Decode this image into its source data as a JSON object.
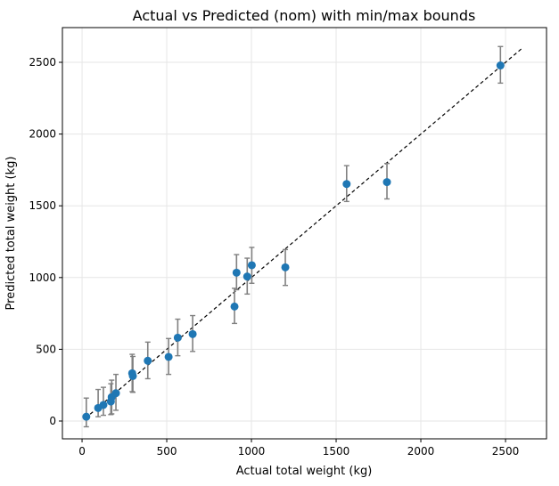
{
  "chart_data": {
    "type": "scatter",
    "title": "Actual vs Predicted (nom) with min/max bounds",
    "xlabel": "Actual total weight (kg)",
    "ylabel": "Predicted total weight (kg)",
    "xlim": [
      -116,
      2742
    ],
    "ylim": [
      -124,
      2742
    ],
    "xticks": [
      0,
      500,
      1000,
      1500,
      2000,
      2500
    ],
    "yticks": [
      0,
      500,
      1000,
      1500,
      2000,
      2500
    ],
    "grid": true,
    "point_color": "#1f77b4",
    "errorbar_color": "#808080",
    "reference_line": {
      "style": "dashed",
      "color": "#000000",
      "x": [
        20,
        2600
      ],
      "y": [
        20,
        2600
      ]
    },
    "points": [
      {
        "x": 25,
        "y": 30,
        "ymin": -40,
        "ymax": 160
      },
      {
        "x": 95,
        "y": 91,
        "ymin": 30,
        "ymax": 220
      },
      {
        "x": 126,
        "y": 112,
        "ymin": 40,
        "ymax": 235
      },
      {
        "x": 170,
        "y": 136,
        "ymin": 45,
        "ymax": 260
      },
      {
        "x": 175,
        "y": 167,
        "ymin": 50,
        "ymax": 285
      },
      {
        "x": 200,
        "y": 194,
        "ymin": 75,
        "ymax": 325
      },
      {
        "x": 296,
        "y": 333,
        "ymin": 205,
        "ymax": 465
      },
      {
        "x": 300,
        "y": 314,
        "ymin": 200,
        "ymax": 450
      },
      {
        "x": 388,
        "y": 420,
        "ymin": 295,
        "ymax": 550
      },
      {
        "x": 511,
        "y": 447,
        "ymin": 325,
        "ymax": 575
      },
      {
        "x": 565,
        "y": 581,
        "ymin": 455,
        "ymax": 710
      },
      {
        "x": 653,
        "y": 606,
        "ymin": 485,
        "ymax": 735
      },
      {
        "x": 900,
        "y": 798,
        "ymin": 680,
        "ymax": 925
      },
      {
        "x": 912,
        "y": 1034,
        "ymin": 915,
        "ymax": 1160
      },
      {
        "x": 975,
        "y": 1007,
        "ymin": 885,
        "ymax": 1135
      },
      {
        "x": 1002,
        "y": 1086,
        "ymin": 960,
        "ymax": 1210
      },
      {
        "x": 1200,
        "y": 1071,
        "ymin": 945,
        "ymax": 1195
      },
      {
        "x": 1562,
        "y": 1652,
        "ymin": 1530,
        "ymax": 1780
      },
      {
        "x": 1800,
        "y": 1665,
        "ymin": 1548,
        "ymax": 1795
      },
      {
        "x": 2470,
        "y": 2478,
        "ymin": 2355,
        "ymax": 2610
      }
    ]
  }
}
